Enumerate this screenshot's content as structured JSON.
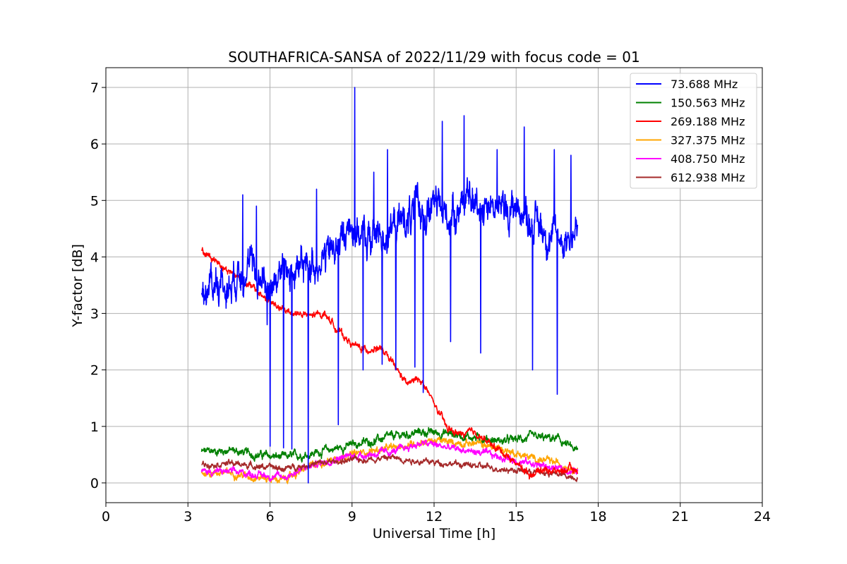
{
  "chart_data": {
    "type": "line",
    "title": "SOUTHAFRICA-SANSA of 2022/11/29 with focus code = 01",
    "xlabel": "Universal Time [h]",
    "ylabel": "Y-factor [dB]",
    "xlim": [
      0,
      24
    ],
    "ylim": [
      -0.35,
      7.35
    ],
    "xticks": [
      0,
      3,
      6,
      9,
      12,
      15,
      18,
      21,
      24
    ],
    "yticks": [
      0,
      1,
      2,
      3,
      4,
      5,
      6,
      7
    ],
    "grid": true,
    "legend_position": "top-right",
    "series": [
      {
        "name": "  73.688 MHz",
        "color": "#0000ff",
        "noise": 0.32,
        "x": [
          3.5,
          4.0,
          4.5,
          5.0,
          5.5,
          6.0,
          6.5,
          7.0,
          7.5,
          8.0,
          8.5,
          9.0,
          9.5,
          10.0,
          10.5,
          11.0,
          11.5,
          12.0,
          12.5,
          13.0,
          13.5,
          14.0,
          14.5,
          15.0,
          15.5,
          16.0,
          16.5,
          17.0,
          17.25
        ],
        "y": [
          3.3,
          3.6,
          3.5,
          3.9,
          3.7,
          3.5,
          3.8,
          3.7,
          3.9,
          4.0,
          4.2,
          4.6,
          4.3,
          4.4,
          4.5,
          4.7,
          4.8,
          4.9,
          4.7,
          5.0,
          4.9,
          5.0,
          4.8,
          4.9,
          4.7,
          4.5,
          4.3,
          4.4,
          4.5
        ],
        "spikes": [
          [
            5.0,
            5.1
          ],
          [
            5.5,
            4.9
          ],
          [
            5.9,
            2.8
          ],
          [
            6.0,
            0.65
          ],
          [
            6.5,
            0.62
          ],
          [
            6.8,
            0.6
          ],
          [
            7.4,
            0.0
          ],
          [
            7.7,
            5.2
          ],
          [
            8.5,
            1.03
          ],
          [
            9.1,
            7.0
          ],
          [
            9.4,
            2.0
          ],
          [
            9.8,
            5.5
          ],
          [
            10.1,
            2.1
          ],
          [
            10.3,
            5.9
          ],
          [
            10.6,
            2.0
          ],
          [
            11.3,
            2.05
          ],
          [
            11.6,
            1.6
          ],
          [
            12.3,
            6.4
          ],
          [
            12.6,
            2.5
          ],
          [
            13.1,
            6.5
          ],
          [
            13.7,
            2.3
          ],
          [
            14.3,
            5.9
          ],
          [
            15.3,
            6.3
          ],
          [
            15.6,
            2.0
          ],
          [
            16.4,
            5.9
          ],
          [
            16.5,
            1.57
          ],
          [
            17.0,
            5.8
          ]
        ]
      },
      {
        "name": "150.563 MHz",
        "color": "#008000",
        "noise": 0.07,
        "x": [
          3.5,
          4.5,
          5.5,
          6.5,
          7.5,
          8.5,
          9.5,
          10.5,
          11.5,
          12.5,
          13.5,
          14.5,
          15.5,
          16.5,
          17.25
        ],
        "y": [
          0.55,
          0.58,
          0.5,
          0.45,
          0.52,
          0.62,
          0.72,
          0.82,
          0.9,
          0.88,
          0.8,
          0.74,
          0.8,
          0.78,
          0.55
        ]
      },
      {
        "name": "269.188 MHz",
        "color": "#ff0000",
        "noise": 0.06,
        "x": [
          3.5,
          4.0,
          4.5,
          5.0,
          5.5,
          6.0,
          6.5,
          7.0,
          7.5,
          8.0,
          8.5,
          9.0,
          9.5,
          10.0,
          10.5,
          11.0,
          11.5,
          12.0,
          12.5,
          13.0,
          13.5,
          14.0,
          14.5,
          15.0,
          15.5,
          16.0,
          16.5,
          17.0,
          17.25
        ],
        "y": [
          4.1,
          3.95,
          3.75,
          3.6,
          3.4,
          3.2,
          3.05,
          3.0,
          2.95,
          3.0,
          2.7,
          2.45,
          2.35,
          2.4,
          2.1,
          1.75,
          1.85,
          1.4,
          0.95,
          0.85,
          0.9,
          0.7,
          0.55,
          0.35,
          0.15,
          0.25,
          0.2,
          0.25,
          0.2
        ]
      },
      {
        "name": "327.375 MHz",
        "color": "#ffa500",
        "noise": 0.06,
        "x": [
          3.5,
          4.5,
          5.5,
          6.5,
          7.5,
          8.5,
          9.5,
          10.5,
          11.5,
          12.0,
          12.5,
          13.5,
          14.5,
          15.5,
          16.5,
          17.25
        ],
        "y": [
          0.18,
          0.18,
          0.1,
          0.05,
          0.3,
          0.45,
          0.55,
          0.62,
          0.72,
          0.75,
          0.72,
          0.7,
          0.6,
          0.45,
          0.35,
          0.25
        ]
      },
      {
        "name": "408.750 MHz",
        "color": "#ff00ff",
        "noise": 0.06,
        "x": [
          3.5,
          4.5,
          5.5,
          6.5,
          7.5,
          8.5,
          9.5,
          10.5,
          11.5,
          12.0,
          12.5,
          13.5,
          14.5,
          15.5,
          16.5,
          17.25
        ],
        "y": [
          0.2,
          0.2,
          0.15,
          0.1,
          0.3,
          0.45,
          0.5,
          0.55,
          0.7,
          0.68,
          0.62,
          0.55,
          0.45,
          0.35,
          0.25,
          0.2
        ]
      },
      {
        "name": "612.938 MHz",
        "color": "#a52a2a",
        "noise": 0.05,
        "x": [
          3.5,
          4.5,
          5.5,
          6.5,
          7.5,
          8.5,
          9.5,
          10.5,
          11.5,
          12.5,
          13.5,
          14.5,
          15.5,
          16.5,
          17.25
        ],
        "y": [
          0.33,
          0.35,
          0.3,
          0.25,
          0.33,
          0.38,
          0.42,
          0.45,
          0.38,
          0.35,
          0.3,
          0.25,
          0.2,
          0.15,
          0.1
        ]
      }
    ]
  }
}
